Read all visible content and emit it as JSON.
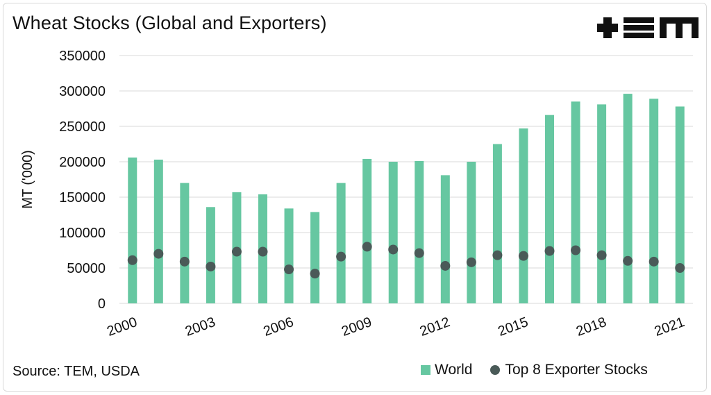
{
  "title": "Wheat Stocks (Global and Exporters)",
  "source": "Source: TEM, USDA",
  "logo_text": "+TEM",
  "colors": {
    "world": "#66c7a1",
    "exporters": "#4a5a58",
    "grid": "#d9d9d9"
  },
  "chart_data": {
    "type": "bar",
    "ylabel": "MT ('000)",
    "ylim": [
      0,
      350000
    ],
    "yticks": [
      0,
      50000,
      100000,
      150000,
      200000,
      250000,
      300000,
      350000
    ],
    "x": [
      2000,
      2001,
      2002,
      2003,
      2004,
      2005,
      2006,
      2007,
      2008,
      2009,
      2010,
      2011,
      2012,
      2013,
      2014,
      2015,
      2016,
      2017,
      2018,
      2019,
      2020,
      2021
    ],
    "xtick_labels": [
      "2000",
      "2003",
      "2006",
      "2009",
      "2012",
      "2015",
      "2018",
      "2021"
    ],
    "xtick_years": [
      2000,
      2003,
      2006,
      2009,
      2012,
      2015,
      2018,
      2021
    ],
    "grid": true,
    "legend_position": "bottom-right",
    "series": [
      {
        "name": "World",
        "kind": "bar",
        "values": [
          206000,
          203000,
          170000,
          136000,
          157000,
          154000,
          134000,
          129000,
          170000,
          204000,
          200000,
          201000,
          181000,
          200000,
          225000,
          247000,
          266000,
          285000,
          281000,
          296000,
          289000,
          278000
        ]
      },
      {
        "name": "Top 8 Exporter Stocks",
        "kind": "scatter",
        "values": [
          61000,
          70000,
          59000,
          52000,
          73000,
          73000,
          48000,
          42000,
          66000,
          80000,
          76000,
          71000,
          53000,
          58000,
          68000,
          67000,
          74000,
          75000,
          68000,
          60000,
          59000,
          50000
        ]
      }
    ]
  }
}
